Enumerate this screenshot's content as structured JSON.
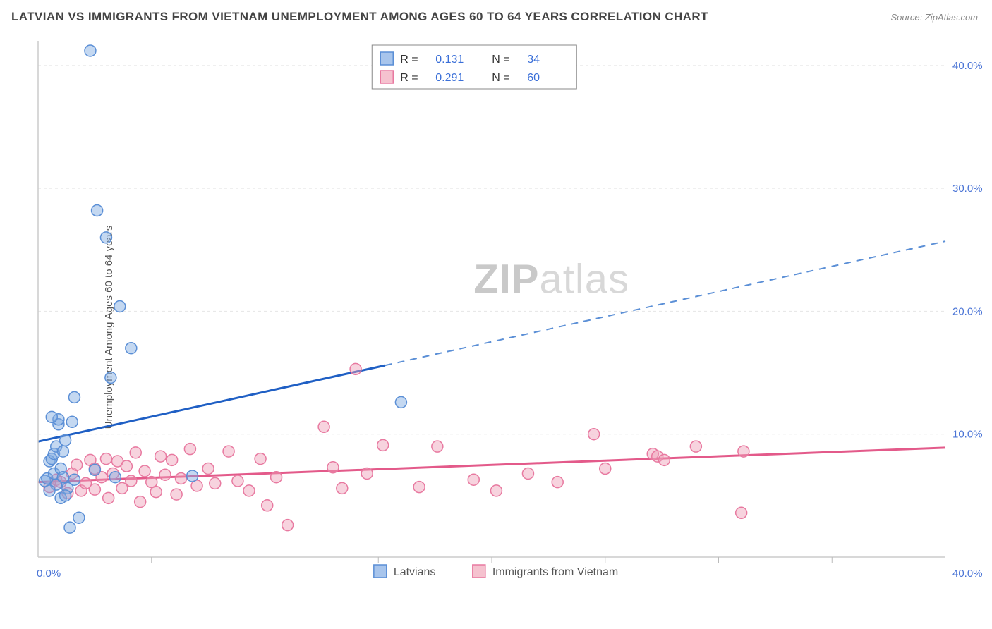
{
  "header": {
    "title": "LATVIAN VS IMMIGRANTS FROM VIETNAM UNEMPLOYMENT AMONG AGES 60 TO 64 YEARS CORRELATION CHART",
    "source": "Source: ZipAtlas.com"
  },
  "ylabel": "Unemployment Among Ages 60 to 64 years",
  "watermark": {
    "part1": "ZIP",
    "part2": "atlas"
  },
  "chart": {
    "type": "scatter",
    "background_color": "#ffffff",
    "grid_color": "#e5e5e5",
    "axis_color": "#cccccc",
    "xlim": [
      0,
      40
    ],
    "ylim": [
      0,
      42
    ],
    "x_origin_label": "0.0%",
    "x_end_label": "40.0%",
    "yticks": [
      {
        "v": 10,
        "label": "10.0%"
      },
      {
        "v": 20,
        "label": "20.0%"
      },
      {
        "v": 30,
        "label": "30.0%"
      },
      {
        "v": 40,
        "label": "40.0%"
      }
    ],
    "xtick_positions": [
      5,
      10,
      15,
      20,
      25,
      30,
      35
    ],
    "marker_radius": 8,
    "series": {
      "latvian": {
        "label": "Latvians",
        "fill_color": "#a8c5ec",
        "stroke_color": "#5b8fd6",
        "R": "0.131",
        "N": "34",
        "trend": {
          "x1": 0,
          "y1": 9.4,
          "x_solid_end": 15.3,
          "y_solid_end": 15.6,
          "x2": 40,
          "y2": 25.7,
          "solid_color": "#1f5fc4",
          "dash_color": "#5b8fd6",
          "width": 3
        },
        "points": [
          [
            0.3,
            6.2
          ],
          [
            0.4,
            6.4
          ],
          [
            0.5,
            7.8
          ],
          [
            0.6,
            8.0
          ],
          [
            0.7,
            6.8
          ],
          [
            0.7,
            8.4
          ],
          [
            0.8,
            5.9
          ],
          [
            0.8,
            9.0
          ],
          [
            0.9,
            10.8
          ],
          [
            0.9,
            11.2
          ],
          [
            1.0,
            7.2
          ],
          [
            1.0,
            4.8
          ],
          [
            1.1,
            6.5
          ],
          [
            1.1,
            8.6
          ],
          [
            1.2,
            9.5
          ],
          [
            1.3,
            5.6
          ],
          [
            1.4,
            2.4
          ],
          [
            1.5,
            11.0
          ],
          [
            1.6,
            6.3
          ],
          [
            1.6,
            13.0
          ],
          [
            1.8,
            3.2
          ],
          [
            2.3,
            41.2
          ],
          [
            2.5,
            7.1
          ],
          [
            2.6,
            28.2
          ],
          [
            3.0,
            26.0
          ],
          [
            3.2,
            14.6
          ],
          [
            3.4,
            6.5
          ],
          [
            3.6,
            20.4
          ],
          [
            4.1,
            17.0
          ],
          [
            0.6,
            11.4
          ],
          [
            6.8,
            6.6
          ],
          [
            1.2,
            5.0
          ],
          [
            0.5,
            5.4
          ],
          [
            16.0,
            12.6
          ]
        ]
      },
      "vietnam": {
        "label": "Immigrants from Vietnam",
        "fill_color": "#f5c2cf",
        "stroke_color": "#e879a0",
        "R": "0.291",
        "N": "60",
        "trend": {
          "x1": 0,
          "y1": 6.1,
          "x2": 40,
          "y2": 8.9,
          "color": "#e35a8a",
          "width": 3
        },
        "points": [
          [
            0.5,
            5.7
          ],
          [
            0.8,
            6.3
          ],
          [
            1.0,
            6.1
          ],
          [
            1.3,
            5.2
          ],
          [
            1.5,
            6.8
          ],
          [
            1.7,
            7.5
          ],
          [
            1.9,
            5.4
          ],
          [
            2.1,
            6.0
          ],
          [
            2.3,
            7.9
          ],
          [
            2.5,
            7.2
          ],
          [
            2.5,
            5.5
          ],
          [
            2.8,
            6.5
          ],
          [
            3.0,
            8.0
          ],
          [
            3.1,
            4.8
          ],
          [
            3.3,
            6.8
          ],
          [
            3.5,
            7.8
          ],
          [
            3.7,
            5.6
          ],
          [
            3.9,
            7.4
          ],
          [
            4.1,
            6.2
          ],
          [
            4.3,
            8.5
          ],
          [
            4.5,
            4.5
          ],
          [
            4.7,
            7.0
          ],
          [
            5.0,
            6.1
          ],
          [
            5.2,
            5.3
          ],
          [
            5.4,
            8.2
          ],
          [
            5.6,
            6.7
          ],
          [
            5.9,
            7.9
          ],
          [
            6.1,
            5.1
          ],
          [
            6.3,
            6.4
          ],
          [
            6.7,
            8.8
          ],
          [
            7.0,
            5.8
          ],
          [
            7.5,
            7.2
          ],
          [
            7.8,
            6.0
          ],
          [
            8.4,
            8.6
          ],
          [
            8.8,
            6.2
          ],
          [
            9.3,
            5.4
          ],
          [
            9.8,
            8.0
          ],
          [
            10.1,
            4.2
          ],
          [
            10.5,
            6.5
          ],
          [
            11.0,
            2.6
          ],
          [
            12.6,
            10.6
          ],
          [
            13.0,
            7.3
          ],
          [
            13.4,
            5.6
          ],
          [
            14.0,
            15.3
          ],
          [
            14.5,
            6.8
          ],
          [
            15.2,
            9.1
          ],
          [
            16.8,
            5.7
          ],
          [
            17.6,
            9.0
          ],
          [
            19.2,
            6.3
          ],
          [
            20.2,
            5.4
          ],
          [
            21.6,
            6.8
          ],
          [
            22.9,
            6.1
          ],
          [
            24.5,
            10.0
          ],
          [
            25.0,
            7.2
          ],
          [
            27.1,
            8.4
          ],
          [
            27.3,
            8.2
          ],
          [
            27.6,
            7.9
          ],
          [
            29.0,
            9.0
          ],
          [
            31.0,
            3.6
          ],
          [
            31.1,
            8.6
          ]
        ]
      }
    },
    "top_legend": {
      "R_label": "R  =",
      "N_label": "N  ="
    },
    "bottom_legend": {
      "series1_key": "latvian",
      "series2_key": "vietnam"
    }
  }
}
